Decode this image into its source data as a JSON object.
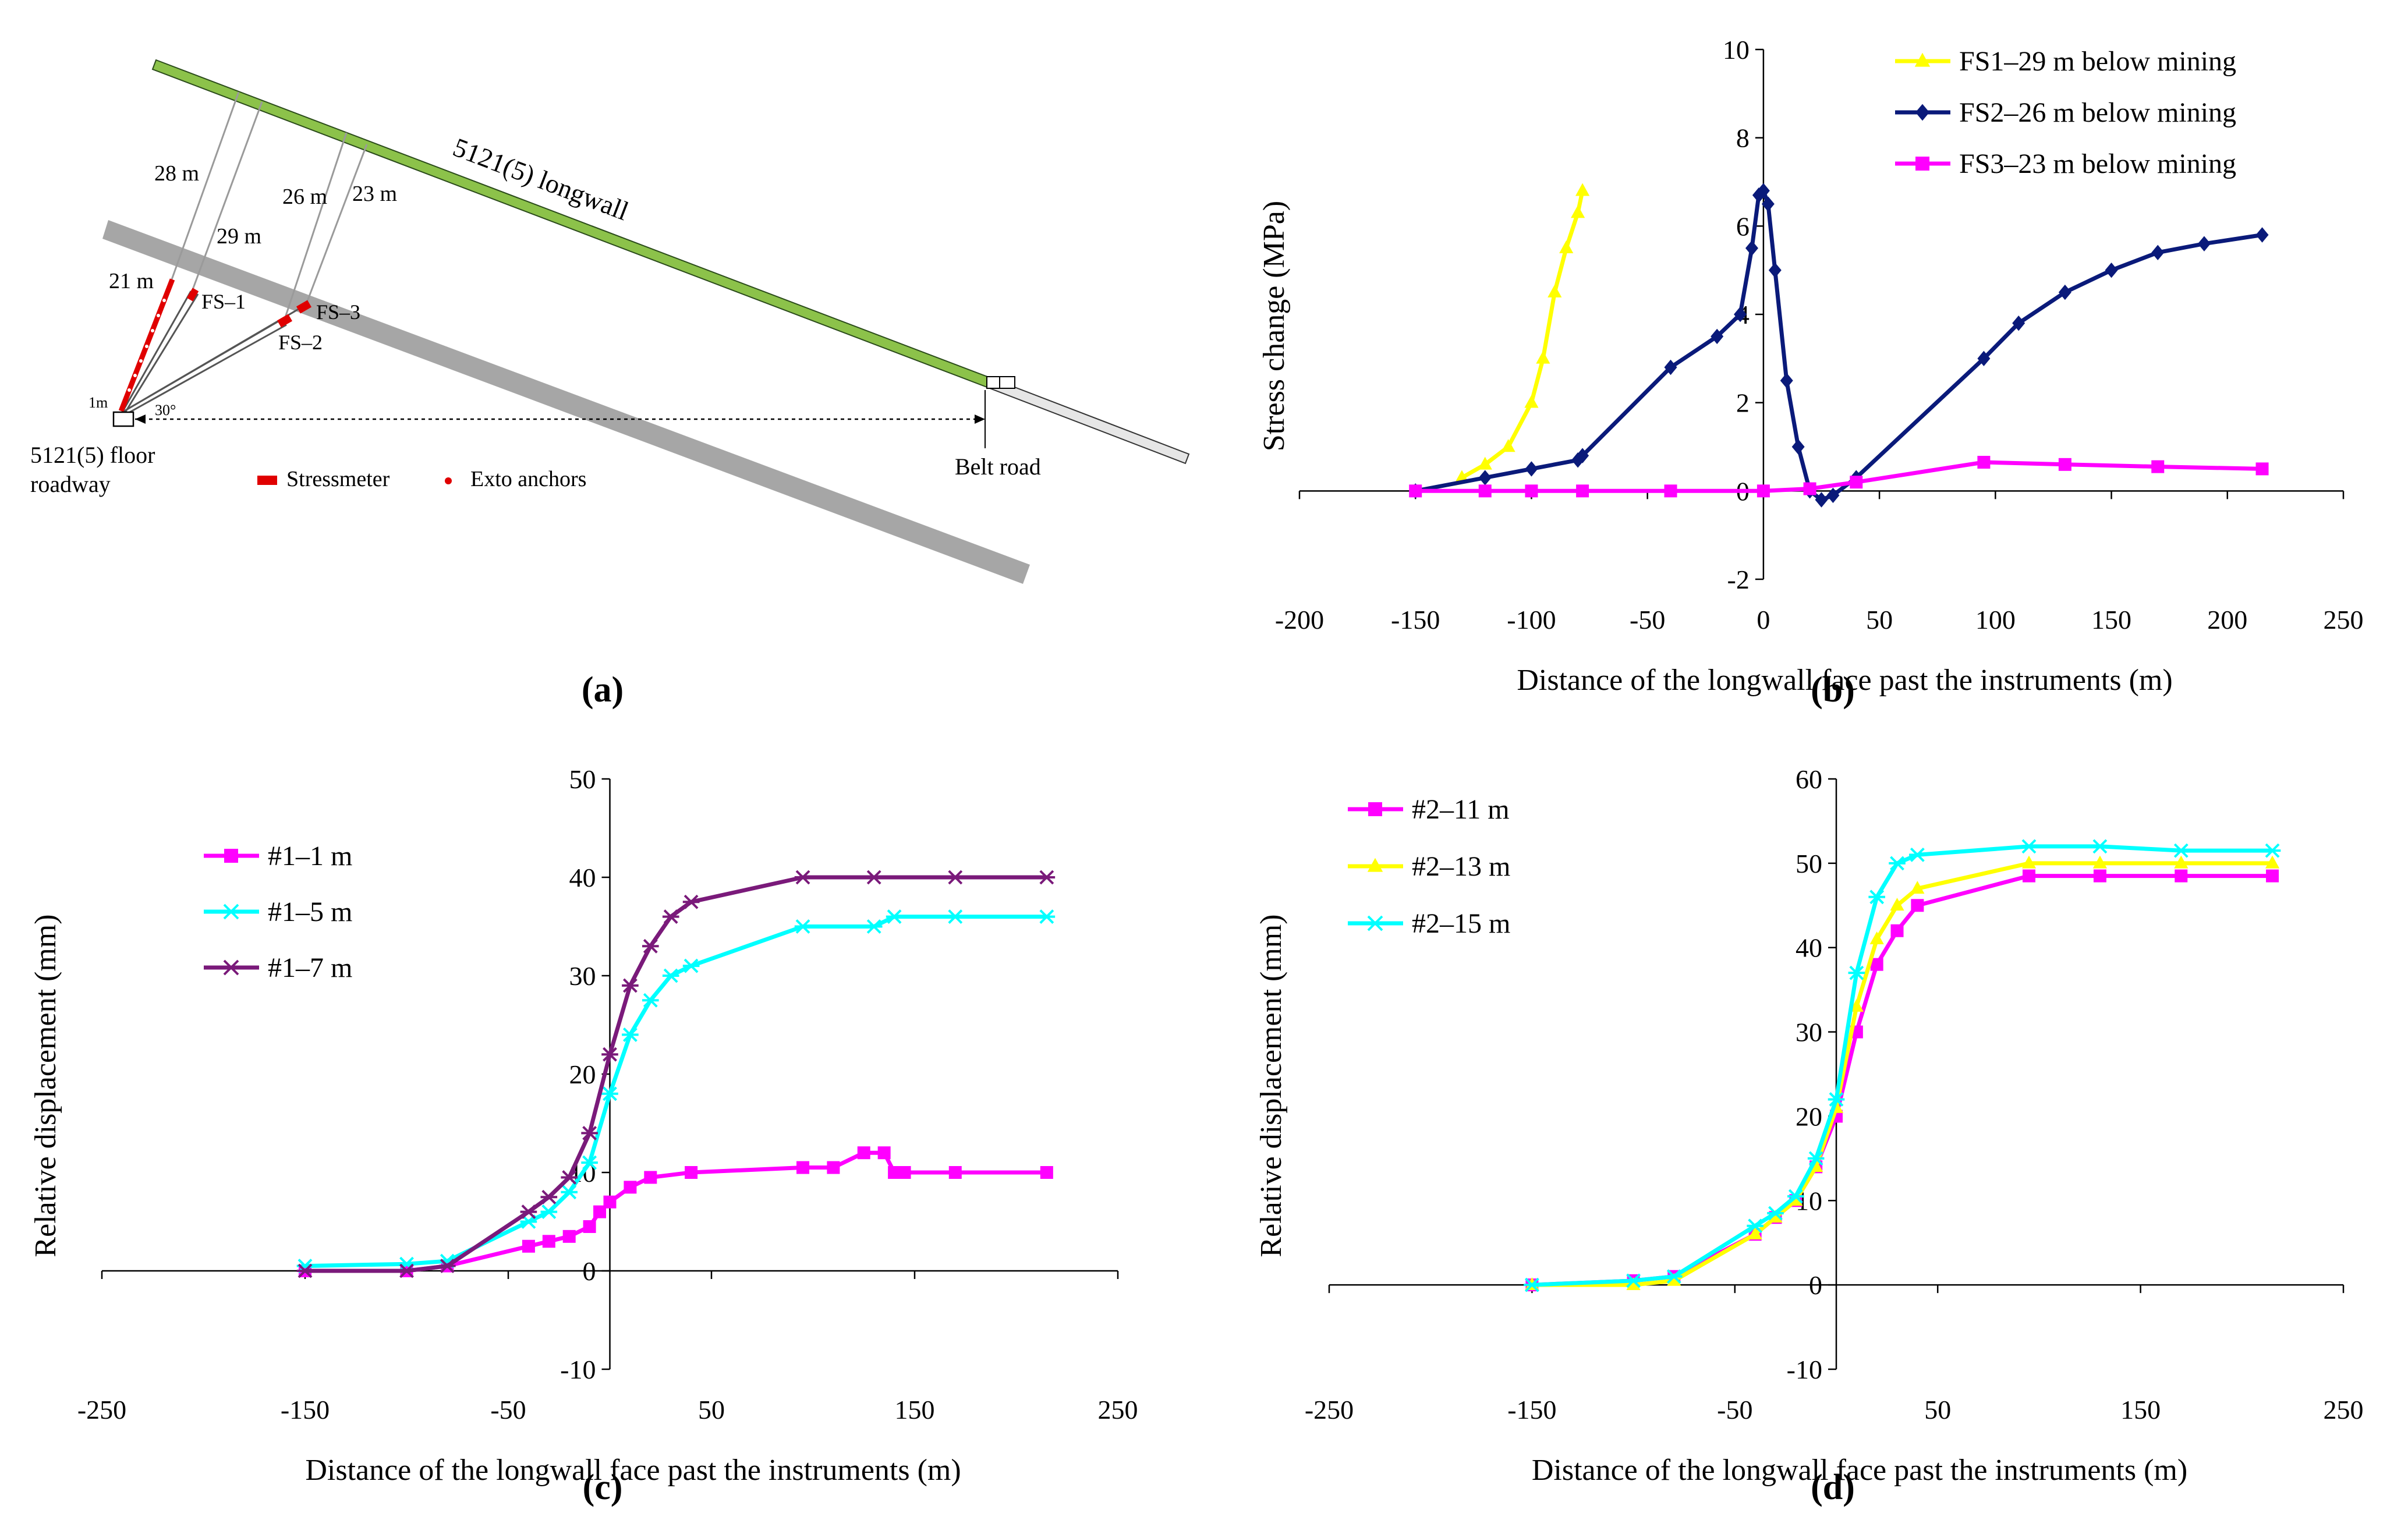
{
  "panel_labels": {
    "a": "(a)",
    "b": "(b)",
    "c": "(c)",
    "d": "(d)"
  },
  "schematic": {
    "longwall_label": "5121(5) longwall",
    "belt_road_label": "Belt road",
    "roadway_label_1": "5121(5) floor",
    "roadway_label_2": "roadway",
    "angle_label": "30°",
    "one_m_label": "1m",
    "dist_labels": [
      "28 m",
      "29 m",
      "21 m",
      "26 m",
      "23 m"
    ],
    "fs_labels": [
      "FS–1",
      "FS–2",
      "FS–3"
    ],
    "legend_stressmeter": "Stressmeter",
    "legend_anchors": "Exto anchors",
    "colors": {
      "longwall": "#8cc24a",
      "floor_band": "#a6a6a6",
      "instrument": "#e00000"
    }
  },
  "chart_data": [
    {
      "id": "b",
      "type": "line",
      "title": "",
      "xlabel": "Distance of the longwall face past the instruments (m)",
      "ylabel": "Stress change (MPa)",
      "xlim": [
        -200,
        250
      ],
      "ylim": [
        -2,
        10
      ],
      "xticks": [
        -200,
        -150,
        -100,
        -50,
        0,
        50,
        100,
        150,
        200,
        250
      ],
      "yticks": [
        -2,
        0,
        2,
        4,
        6,
        8,
        10
      ],
      "x_tick_labels": [
        "-200",
        "-150",
        "-100",
        "-50",
        "0",
        "50",
        "100",
        "150",
        "200",
        "250"
      ],
      "y_tick_labels": [
        "-2",
        "0",
        "2",
        "4",
        "6",
        "8",
        "10"
      ],
      "legend_position": "top-right",
      "series": [
        {
          "name": "FS1–29 m below mining",
          "color": "#ffff00",
          "marker": "triangle",
          "x": [
            -130,
            -120,
            -110,
            -100,
            -95,
            -90,
            -85,
            -80,
            -78
          ],
          "y": [
            0.3,
            0.6,
            1.0,
            2.0,
            3.0,
            4.5,
            5.5,
            6.3,
            6.8
          ]
        },
        {
          "name": "FS2–26 m below mining",
          "color": "#0a1a7a",
          "marker": "diamond",
          "x": [
            -150,
            -120,
            -100,
            -80,
            -78,
            -40,
            -20,
            -10,
            -5,
            -2,
            0,
            2,
            5,
            10,
            15,
            20,
            25,
            30,
            40,
            95,
            110,
            130,
            150,
            170,
            190,
            215
          ],
          "y": [
            0.0,
            0.3,
            0.5,
            0.7,
            0.8,
            2.8,
            3.5,
            4.0,
            5.5,
            6.7,
            6.8,
            6.5,
            5.0,
            2.5,
            1.0,
            0.0,
            -0.2,
            -0.1,
            0.3,
            3.0,
            3.8,
            4.5,
            5.0,
            5.4,
            5.6,
            5.8
          ]
        },
        {
          "name": "FS3–23 m below mining",
          "color": "#ff00ff",
          "marker": "square",
          "x": [
            -150,
            -120,
            -100,
            -78,
            -40,
            0,
            20,
            40,
            95,
            130,
            170,
            215
          ],
          "y": [
            0.0,
            0.0,
            0.0,
            0.0,
            0.0,
            0.0,
            0.05,
            0.2,
            0.65,
            0.6,
            0.55,
            0.5
          ]
        }
      ]
    },
    {
      "id": "c",
      "type": "line",
      "title": "",
      "xlabel": "Distance of the longwall face past the instruments (m)",
      "ylabel": "Relative displacement (mm)",
      "xlim": [
        -250,
        250
      ],
      "ylim": [
        -10,
        50
      ],
      "xticks": [
        -250,
        -150,
        -50,
        50,
        150,
        250
      ],
      "yticks": [
        -10,
        0,
        10,
        20,
        30,
        40,
        50
      ],
      "x_tick_labels": [
        "-250",
        "-150",
        "-50",
        "50",
        "150",
        "250"
      ],
      "y_tick_labels": [
        "-10",
        "0",
        "10",
        "20",
        "30",
        "40",
        "50"
      ],
      "legend_position": "top-left",
      "series": [
        {
          "name": "#1–1 m",
          "color": "#ff00ff",
          "marker": "square",
          "x": [
            -150,
            -100,
            -80,
            -40,
            -30,
            -20,
            -10,
            -5,
            0,
            10,
            20,
            40,
            95,
            110,
            125,
            135,
            140,
            145,
            170,
            215
          ],
          "y": [
            0,
            0,
            0.5,
            2.5,
            3,
            3.5,
            4.5,
            6,
            7,
            8.5,
            9.5,
            10,
            10.5,
            10.5,
            12,
            12,
            10,
            10,
            10,
            10
          ]
        },
        {
          "name": "#1–5 m",
          "color": "#00ffff",
          "marker": "star",
          "x": [
            -150,
            -100,
            -80,
            -40,
            -30,
            -20,
            -10,
            0,
            10,
            20,
            30,
            40,
            95,
            130,
            140,
            170,
            215
          ],
          "y": [
            0.5,
            0.7,
            1.0,
            5.0,
            6.0,
            8.0,
            11.0,
            18.0,
            24.0,
            27.5,
            30.0,
            31.0,
            35.0,
            35.0,
            36.0,
            36.0,
            36.0
          ]
        },
        {
          "name": "#1–7 m",
          "color": "#7a1a7a",
          "marker": "star",
          "x": [
            -150,
            -100,
            -80,
            -40,
            -30,
            -20,
            -10,
            0,
            10,
            20,
            30,
            40,
            95,
            130,
            170,
            215
          ],
          "y": [
            0.0,
            0.0,
            0.5,
            6.0,
            7.5,
            9.5,
            14.0,
            22.0,
            29.0,
            33.0,
            36.0,
            37.5,
            40.0,
            40.0,
            40.0,
            40.0
          ]
        }
      ]
    },
    {
      "id": "d",
      "type": "line",
      "title": "",
      "xlabel": "Distance of the longwall face past the instruments (m)",
      "ylabel": "Relative displacement (mm)",
      "xlim": [
        -250,
        250
      ],
      "ylim": [
        -10,
        60
      ],
      "xticks": [
        -250,
        -150,
        -50,
        50,
        150,
        250
      ],
      "yticks": [
        -10,
        0,
        10,
        20,
        30,
        40,
        50,
        60
      ],
      "x_tick_labels": [
        "-250",
        "-150",
        "-50",
        "50",
        "150",
        "250"
      ],
      "y_tick_labels": [
        "-10",
        "0",
        "10",
        "20",
        "30",
        "40",
        "50",
        "60"
      ],
      "legend_position": "top-left",
      "series": [
        {
          "name": "#2–11 m",
          "color": "#ff00ff",
          "marker": "square",
          "x": [
            -150,
            -100,
            -80,
            -40,
            -30,
            -20,
            -10,
            0,
            10,
            20,
            30,
            40,
            95,
            130,
            170,
            215
          ],
          "y": [
            0,
            0.5,
            1,
            6,
            8,
            10,
            14,
            20,
            30,
            38,
            42,
            45,
            48.5,
            48.5,
            48.5,
            48.5
          ]
        },
        {
          "name": "#2–13 m",
          "color": "#ffff00",
          "marker": "triangle",
          "x": [
            -150,
            -100,
            -80,
            -40,
            -30,
            -20,
            -10,
            0,
            10,
            20,
            30,
            40,
            95,
            130,
            170,
            215
          ],
          "y": [
            0,
            0,
            0.5,
            6,
            8,
            10,
            14,
            21,
            33,
            41,
            45,
            47,
            50,
            50,
            50,
            50
          ]
        },
        {
          "name": "#2–15 m",
          "color": "#00ffff",
          "marker": "star",
          "x": [
            -150,
            -100,
            -80,
            -40,
            -30,
            -20,
            -10,
            0,
            10,
            20,
            30,
            40,
            95,
            130,
            170,
            215
          ],
          "y": [
            0,
            0.5,
            1,
            7,
            8.5,
            10.5,
            15,
            22,
            37,
            46,
            50,
            51,
            52,
            52,
            51.5,
            51.5
          ]
        }
      ]
    }
  ]
}
